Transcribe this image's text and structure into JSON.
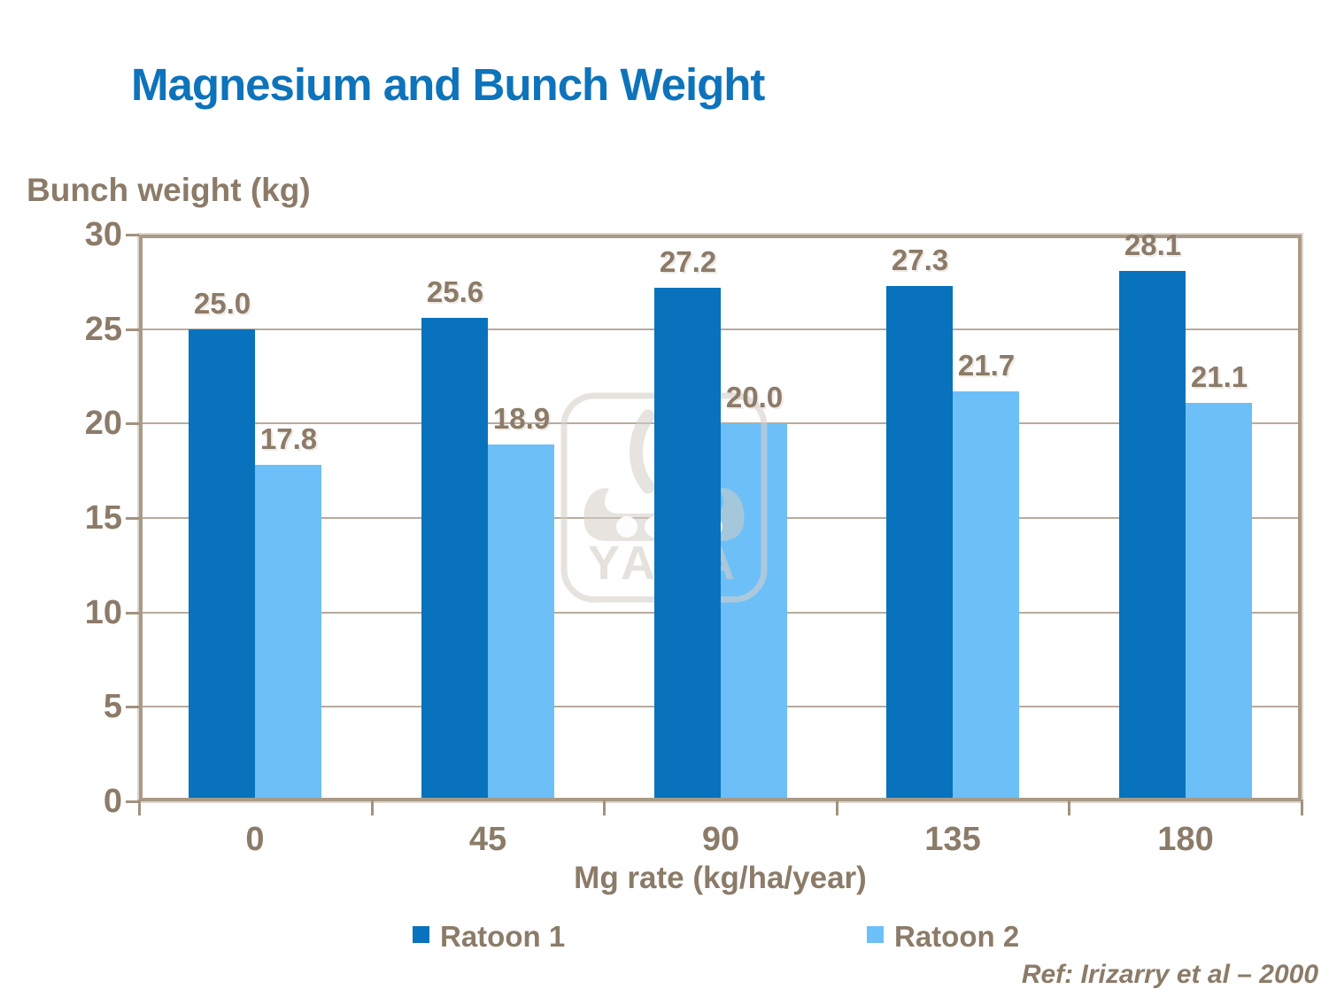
{
  "title": "Magnesium and Bunch Weight",
  "watermark": {
    "brand": "YARA"
  },
  "footer": {
    "ref": "Ref: Irizarry et al – 2000"
  },
  "colors": {
    "title_blue": "#0d73bb",
    "text_taupe": "#8b7b68",
    "axis_taupe": "#a89a87",
    "gridline": "#b7ab9c",
    "ratoon1": "#0872bd",
    "ratoon2": "#6cbff7"
  },
  "chart_data": {
    "type": "bar",
    "title": "Magnesium and Bunch Weight",
    "ylabel": "Bunch weight (kg)",
    "xlabel": "Mg rate (kg/ha/year)",
    "categories": [
      "0",
      "45",
      "90",
      "135",
      "180"
    ],
    "series": [
      {
        "name": "Ratoon 1",
        "color": "#0872bd",
        "values": [
          25.0,
          25.6,
          27.2,
          27.3,
          28.1
        ]
      },
      {
        "name": "Ratoon 2",
        "color": "#6cbff7",
        "values": [
          17.8,
          18.9,
          20.0,
          21.7,
          21.1
        ]
      }
    ],
    "ylim": [
      0,
      30
    ],
    "yticks": [
      0,
      5,
      10,
      15,
      20,
      25,
      30
    ],
    "grid": true,
    "value_labels": true,
    "value_label_format": "one-decimal",
    "legend_position": "bottom"
  }
}
